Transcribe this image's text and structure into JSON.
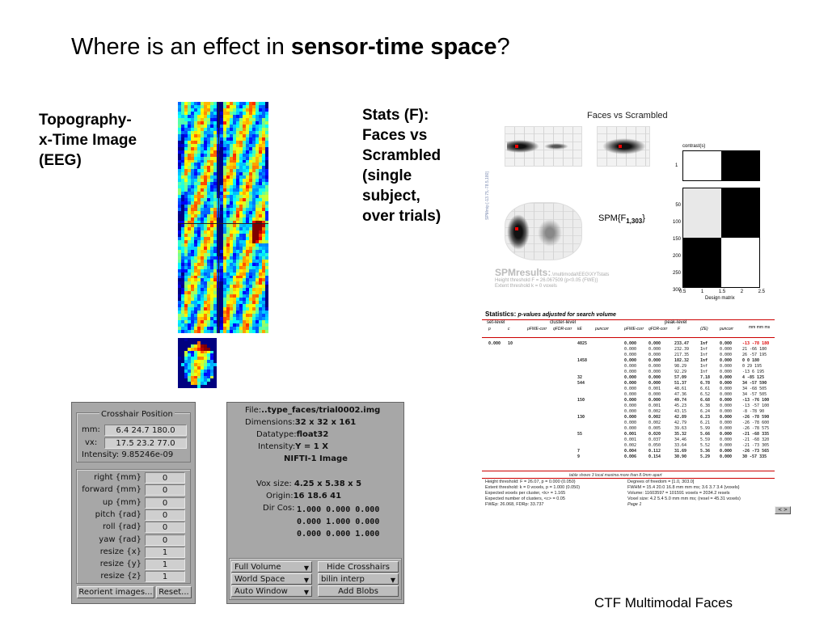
{
  "slide": {
    "title_prefix": "Where is an effect in ",
    "title_bold": "sensor-time space",
    "title_suffix": "?",
    "left_label": [
      "Topography-",
      "x-Time Image",
      "(EEG)"
    ],
    "stats_label": [
      "Stats (F):",
      "Faces vs",
      "Scrambled",
      "(single",
      "subject,",
      "over trials)"
    ],
    "footer": "CTF Multimodal Faces"
  },
  "spm": {
    "contrast_title": "Faces vs Scrambled",
    "contrast_label": "contrast(s)",
    "spm_axis_label": "SPMmip",
    "spm_axis_coords": "[-13.75,-78.5,180]",
    "spm_stat": "SPM{F",
    "spm_stat_sub": "1,303",
    "spm_stat_close": "}",
    "results_title": "SPMresults:",
    "results_path": ".\\multimodal\\EEG\\XYTstats",
    "results_line1": "Height threshold F = 26.067509  {p<0.05 (FWE)}",
    "results_line2": "Extent threshold k = 0 voxels",
    "design_label": "Design matrix",
    "design_x_ticks": [
      "0.5",
      "1",
      "1.5",
      "2",
      "2.5"
    ],
    "design_y_ticks": [
      "50",
      "100",
      "150",
      "200",
      "250",
      "300"
    ],
    "contrast_y_tick": "1"
  },
  "stats_table": {
    "header": "Statistics:",
    "header_sub": "p-values adjusted for search volume",
    "groups": [
      "set-level",
      "cluster-level",
      "peak-level"
    ],
    "mm_label": "mm mm ms",
    "cols": [
      "p",
      "c",
      "pFWE-corr",
      "qFDR-corr",
      "kE",
      "puncorr",
      "pFWE-corr",
      "qFDR-corr",
      "F",
      "(ZE)",
      "puncorr"
    ],
    "rows": [
      [
        "0.000",
        "10",
        "",
        "",
        "4025",
        "",
        "0.000",
        "0.000",
        "233.47",
        "Inf",
        "0.000",
        "-13 -78 180"
      ],
      [
        "",
        "",
        "",
        "",
        "",
        "",
        "0.000",
        "0.000",
        "232.39",
        "Inf",
        "0.000",
        "21 -66 180"
      ],
      [
        "",
        "",
        "",
        "",
        "",
        "",
        "0.000",
        "0.000",
        "217.35",
        "Inf",
        "0.000",
        "26 -57 195"
      ],
      [
        "",
        "",
        "",
        "",
        "1458",
        "",
        "0.000",
        "0.000",
        "102.32",
        "Inf",
        "0.000",
        "0 0 180"
      ],
      [
        "",
        "",
        "",
        "",
        "",
        "",
        "0.000",
        "0.000",
        "98.29",
        "Inf",
        "0.000",
        "0 29 195"
      ],
      [
        "",
        "",
        "",
        "",
        "",
        "",
        "0.000",
        "0.000",
        "92.29",
        "Inf",
        "0.000",
        "-13 6 195"
      ],
      [
        "",
        "",
        "",
        "",
        "32",
        "",
        "0.000",
        "0.000",
        "57.09",
        "7.18",
        "0.000",
        "4 -85 125"
      ],
      [
        "",
        "",
        "",
        "",
        "544",
        "",
        "0.000",
        "0.000",
        "51.37",
        "6.78",
        "0.000",
        "34 -57 590"
      ],
      [
        "",
        "",
        "",
        "",
        "",
        "",
        "0.000",
        "0.001",
        "48.61",
        "6.61",
        "0.000",
        "34 -68 505"
      ],
      [
        "",
        "",
        "",
        "",
        "",
        "",
        "0.000",
        "0.000",
        "47.36",
        "6.52",
        "0.000",
        "34 -57 505"
      ],
      [
        "",
        "",
        "",
        "",
        "150",
        "",
        "0.000",
        "0.000",
        "49.74",
        "6.68",
        "0.000",
        "-13 -76 100"
      ],
      [
        "",
        "",
        "",
        "",
        "",
        "",
        "0.000",
        "0.001",
        "45.23",
        "6.38",
        "0.000",
        "-13 -57 100"
      ],
      [
        "",
        "",
        "",
        "",
        "",
        "",
        "0.000",
        "0.002",
        "43.15",
        "6.24",
        "0.000",
        "-8 -78 90"
      ],
      [
        "",
        "",
        "",
        "",
        "130",
        "",
        "0.000",
        "0.002",
        "42.89",
        "6.23",
        "0.000",
        "-26 -78 590"
      ],
      [
        "",
        "",
        "",
        "",
        "",
        "",
        "0.000",
        "0.002",
        "42.79",
        "6.21",
        "0.000",
        "-26 -78 600"
      ],
      [
        "",
        "",
        "",
        "",
        "",
        "",
        "0.000",
        "0.005",
        "39.63",
        "5.99",
        "0.000",
        "-26 -78 575"
      ],
      [
        "",
        "",
        "",
        "",
        "55",
        "",
        "0.001",
        "0.020",
        "35.32",
        "5.66",
        "0.000",
        "-21 -68 335"
      ],
      [
        "",
        "",
        "",
        "",
        "",
        "",
        "0.001",
        "0.037",
        "34.46",
        "5.59",
        "0.000",
        "-21 -68 320"
      ],
      [
        "",
        "",
        "",
        "",
        "",
        "",
        "0.002",
        "0.050",
        "33.64",
        "5.52",
        "0.000",
        "-21 -73 305"
      ],
      [
        "",
        "",
        "",
        "",
        "7",
        "",
        "0.004",
        "0.112",
        "31.69",
        "5.36",
        "0.000",
        "-26 -73 565"
      ],
      [
        "",
        "",
        "",
        "",
        "9",
        "",
        "0.006",
        "0.154",
        "30.90",
        "5.29",
        "0.000",
        "30 -57 335"
      ]
    ],
    "table_note": "table shows 3 local maxima more than 8.0mm apart",
    "footer_left": [
      "Height threshold: F = 26.07, p = 0.000 (0.050)",
      "Extent threshold: k = 0 voxels, p = 1.000 (0.050)",
      "Expected voxels per cluster, <k> = 1.165",
      "Expected number of clusters, <c> = 0.05",
      "FWEp: 26.068, FDRp: 33.737"
    ],
    "footer_right": [
      "Degrees of freedom = [1.0, 303.0]",
      "FWHM = 15.4 20.0 16.8 mm mm ms; 3.6 3.7 3.4 {voxels}",
      "Volume: 11603597 = 101591 voxels = 2034.2 resels",
      "Voxel size: 4.2 5.4 5.0 mm mm ms; (resel = 45.31 voxels)",
      "Page 1"
    ],
    "nav": "< >"
  },
  "crosshair_panel": {
    "title": "Crosshair Position",
    "mm_label": "mm:",
    "mm_value": "6.4 24.7 180.0",
    "vx_label": "vx:",
    "vx_value": "17.5 23.2 77.0",
    "intensity": "Intensity: 9.85246e-09",
    "params": [
      {
        "label": "right  {mm}",
        "value": "0"
      },
      {
        "label": "forward  {mm}",
        "value": "0"
      },
      {
        "label": "up  {mm}",
        "value": "0"
      },
      {
        "label": "pitch  {rad}",
        "value": "0"
      },
      {
        "label": "roll  {rad}",
        "value": "0"
      },
      {
        "label": "yaw  {rad}",
        "value": "0"
      },
      {
        "label": "resize  {x}",
        "value": "1"
      },
      {
        "label": "resize  {y}",
        "value": "1"
      },
      {
        "label": "resize  {z}",
        "value": "1"
      }
    ],
    "reorient_btn": "Reorient images...",
    "reset_btn": "Reset..."
  },
  "file_panel": {
    "file_label": "File:",
    "file_value": "..type_faces/trial0002.img",
    "dims_label": "Dimensions:",
    "dims_value": "32 x 32 x 161",
    "dtype_label": "Datatype:",
    "dtype_value": "float32",
    "intensity_label": "Intensity:",
    "intensity_value": "Y = 1 X",
    "format": "NIFTI-1 Image",
    "vox_label": "Vox size:",
    "vox_value": "4.25 x 5.38 x 5",
    "origin_label": "Origin:",
    "origin_value": "16 18.6 41",
    "dircos_label": "Dir Cos:",
    "dircos_rows": [
      "1.000  0.000  0.000",
      "0.000  1.000  0.000",
      "0.000  0.000  1.000"
    ],
    "drop_full": "Full Volume",
    "drop_space": "World Space",
    "drop_window": "Auto Window",
    "hide_btn": "Hide Crosshairs",
    "interp_drop": "bilin interp",
    "blobs_btn": "Add Blobs"
  }
}
